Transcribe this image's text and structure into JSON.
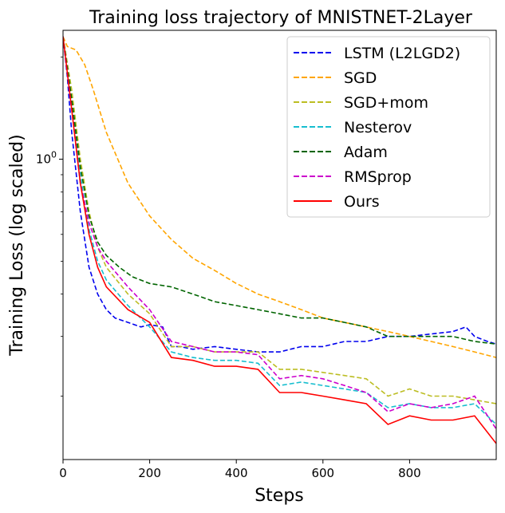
{
  "chart_data": {
    "type": "line",
    "title": "Training loss trajectory of MNISTNET-2Layer",
    "xlabel": "Steps",
    "ylabel": "Training Loss (log scaled)",
    "xlim": [
      0,
      1000
    ],
    "ylim_log": [
      0.13,
      2.4
    ],
    "yscale": "log",
    "x_ticks": [
      0,
      200,
      400,
      600,
      800
    ],
    "x_tick_labels": [
      "0",
      "200",
      "400",
      "600",
      "800"
    ],
    "y_ticks": [
      1.0
    ],
    "y_tick_labels": [
      "10^0"
    ],
    "legend_position": "top-right",
    "series": [
      {
        "name": "LSTM (L2LGD2)",
        "color": "#0000ee",
        "dash": true,
        "x": [
          0,
          10,
          20,
          40,
          60,
          80,
          100,
          120,
          150,
          180,
          200,
          230,
          250,
          270,
          300,
          350,
          400,
          450,
          500,
          550,
          600,
          650,
          700,
          750,
          800,
          850,
          900,
          930,
          950,
          980,
          1000
        ],
        "y": [
          2.3,
          1.75,
          1.2,
          0.7,
          0.48,
          0.4,
          0.36,
          0.34,
          0.33,
          0.32,
          0.325,
          0.32,
          0.28,
          0.28,
          0.275,
          0.28,
          0.275,
          0.27,
          0.27,
          0.28,
          0.28,
          0.29,
          0.29,
          0.3,
          0.3,
          0.305,
          0.31,
          0.32,
          0.3,
          0.29,
          0.285
        ]
      },
      {
        "name": "SGD",
        "color": "#ffa500",
        "dash": true,
        "x": [
          0,
          10,
          30,
          50,
          70,
          100,
          150,
          200,
          250,
          300,
          350,
          400,
          450,
          500,
          550,
          600,
          650,
          700,
          750,
          800,
          850,
          900,
          950,
          1000
        ],
        "y": [
          2.3,
          2.15,
          2.1,
          1.9,
          1.6,
          1.2,
          0.85,
          0.68,
          0.58,
          0.51,
          0.47,
          0.43,
          0.4,
          0.38,
          0.36,
          0.34,
          0.33,
          0.32,
          0.31,
          0.3,
          0.29,
          0.28,
          0.27,
          0.26
        ]
      },
      {
        "name": "SGD+mom",
        "color": "#bcbd22",
        "dash": true,
        "x": [
          0,
          20,
          40,
          60,
          80,
          100,
          150,
          200,
          250,
          300,
          350,
          400,
          450,
          500,
          550,
          600,
          650,
          700,
          750,
          800,
          850,
          900,
          950,
          1000
        ],
        "y": [
          2.3,
          1.6,
          1.0,
          0.7,
          0.55,
          0.48,
          0.4,
          0.35,
          0.28,
          0.28,
          0.27,
          0.27,
          0.27,
          0.24,
          0.24,
          0.235,
          0.23,
          0.225,
          0.2,
          0.21,
          0.2,
          0.2,
          0.195,
          0.19
        ]
      },
      {
        "name": "Nesterov",
        "color": "#17becf",
        "dash": true,
        "x": [
          0,
          20,
          40,
          60,
          80,
          100,
          150,
          200,
          250,
          300,
          350,
          400,
          450,
          500,
          550,
          600,
          650,
          700,
          750,
          800,
          850,
          900,
          950,
          1000
        ],
        "y": [
          2.3,
          1.5,
          0.9,
          0.62,
          0.5,
          0.44,
          0.37,
          0.32,
          0.27,
          0.26,
          0.255,
          0.255,
          0.25,
          0.215,
          0.22,
          0.215,
          0.21,
          0.205,
          0.185,
          0.19,
          0.185,
          0.185,
          0.19,
          0.165
        ]
      },
      {
        "name": "Adam",
        "color": "#006400",
        "dash": true,
        "x": [
          0,
          20,
          40,
          60,
          80,
          100,
          130,
          160,
          200,
          250,
          300,
          350,
          400,
          450,
          500,
          550,
          600,
          650,
          700,
          750,
          800,
          850,
          900,
          950,
          1000
        ],
        "y": [
          2.3,
          1.5,
          0.95,
          0.68,
          0.57,
          0.52,
          0.48,
          0.45,
          0.43,
          0.42,
          0.4,
          0.38,
          0.37,
          0.36,
          0.35,
          0.34,
          0.34,
          0.33,
          0.32,
          0.3,
          0.3,
          0.3,
          0.3,
          0.29,
          0.285
        ]
      },
      {
        "name": "RMSprop",
        "color": "#cc00cc",
        "dash": true,
        "x": [
          0,
          20,
          40,
          60,
          80,
          100,
          150,
          200,
          250,
          300,
          350,
          400,
          450,
          500,
          550,
          600,
          650,
          700,
          750,
          800,
          850,
          900,
          950,
          1000
        ],
        "y": [
          2.3,
          1.4,
          0.85,
          0.65,
          0.55,
          0.5,
          0.42,
          0.36,
          0.29,
          0.28,
          0.27,
          0.27,
          0.265,
          0.225,
          0.23,
          0.225,
          0.215,
          0.205,
          0.18,
          0.19,
          0.185,
          0.19,
          0.2,
          0.16
        ]
      },
      {
        "name": "Ours",
        "color": "#ff0000",
        "dash": false,
        "x": [
          0,
          20,
          40,
          60,
          80,
          100,
          150,
          200,
          250,
          300,
          350,
          400,
          450,
          500,
          550,
          600,
          650,
          700,
          750,
          800,
          850,
          900,
          950,
          1000
        ],
        "y": [
          2.3,
          1.4,
          0.85,
          0.6,
          0.48,
          0.42,
          0.36,
          0.33,
          0.26,
          0.255,
          0.245,
          0.245,
          0.24,
          0.205,
          0.205,
          0.2,
          0.195,
          0.19,
          0.165,
          0.175,
          0.17,
          0.17,
          0.175,
          0.145
        ]
      }
    ]
  }
}
